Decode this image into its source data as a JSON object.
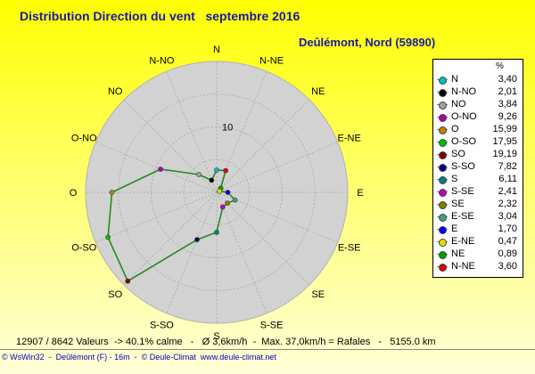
{
  "title": "Distribution Direction du vent   septembre 2016",
  "subtitle": "Deûlémont, Nord (59890)",
  "chart_data": {
    "type": "radar",
    "directions": [
      "N",
      "N-NE",
      "NE",
      "E-NE",
      "E",
      "E-SE",
      "SE",
      "S-SE",
      "S",
      "S-SO",
      "SO",
      "O-SO",
      "O",
      "O-NO",
      "NO",
      "N-NO"
    ],
    "values": [
      3.4,
      3.6,
      0.89,
      0.47,
      1.7,
      3.04,
      2.32,
      2.41,
      6.11,
      7.82,
      19.19,
      17.95,
      15.99,
      9.26,
      3.84,
      2.01
    ],
    "radial_tick_label": "10",
    "radial_max": 20,
    "radial_rings": [
      5,
      10,
      15,
      20
    ],
    "series_color": "#228b22",
    "legend_position": "right",
    "legend_header": "%",
    "legend": [
      {
        "label": "N",
        "value": "3,40",
        "color": "#00c0c0"
      },
      {
        "label": "N-NO",
        "value": "2,01",
        "color": "#000000"
      },
      {
        "label": "NO",
        "value": "3,84",
        "color": "#a0a0a0"
      },
      {
        "label": "O-NO",
        "value": "9,26",
        "color": "#b000b0"
      },
      {
        "label": "O",
        "value": "15,99",
        "color": "#c08000"
      },
      {
        "label": "O-SO",
        "value": "17,95",
        "color": "#00c000"
      },
      {
        "label": "SO",
        "value": "19,19",
        "color": "#800000"
      },
      {
        "label": "S-SO",
        "value": "7,82",
        "color": "#000080"
      },
      {
        "label": "S",
        "value": "6,11",
        "color": "#008080"
      },
      {
        "label": "S-SE",
        "value": "2,41",
        "color": "#c000c0"
      },
      {
        "label": "SE",
        "value": "2,32",
        "color": "#808000"
      },
      {
        "label": "E-SE",
        "value": "3,04",
        "color": "#40a080"
      },
      {
        "label": "E",
        "value": "1,70",
        "color": "#0000ff"
      },
      {
        "label": "E-NE",
        "value": "0,47",
        "color": "#e0e000"
      },
      {
        "label": "NE",
        "value": "0,89",
        "color": "#00a000"
      },
      {
        "label": "N-NE",
        "value": "3,60",
        "color": "#e00000"
      }
    ]
  },
  "footer": {
    "stats": "12907 / 8642 Valeurs  -> 40.1% calme   -   Ø 3,6km/h  -  Max. 37,0km/h = Rafales   -   5155.0 km",
    "credit": "© WsWin32  -  Deûlémont (F) - 16m  -  © Deule-Climat  www.deule-climat.net"
  }
}
